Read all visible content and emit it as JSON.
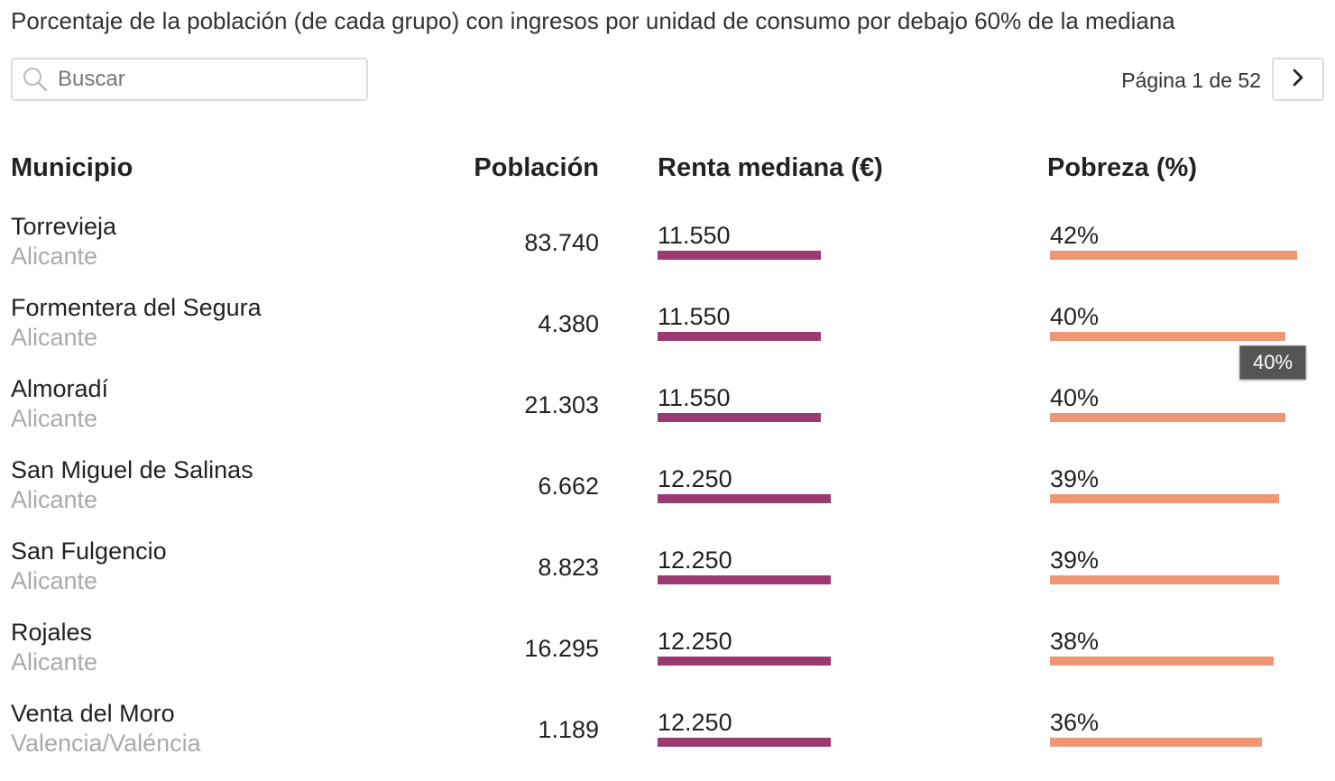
{
  "subtitle": "Porcentaje de la población (de cada grupo) con ingresos por unidad de consumo por debajo 60% de la mediana",
  "search": {
    "placeholder": "Buscar",
    "value": ""
  },
  "pagination": {
    "label": "Página 1 de 52",
    "current_page": 1,
    "total_pages": 52
  },
  "columns": {
    "municipio": "Municipio",
    "poblacion": "Población",
    "renta": "Renta mediana (€)",
    "pobreza": "Pobreza (%)"
  },
  "rows": [
    {
      "municipio": "Torrevieja",
      "provincia": "Alicante",
      "poblacion": "83.740",
      "renta": "11.550",
      "renta_value": 11550,
      "pobreza": "42%",
      "pobreza_value": 42
    },
    {
      "municipio": "Formentera del Segura",
      "provincia": "Alicante",
      "poblacion": "4.380",
      "renta": "11.550",
      "renta_value": 11550,
      "pobreza": "40%",
      "pobreza_value": 40
    },
    {
      "municipio": "Almoradí",
      "provincia": "Alicante",
      "poblacion": "21.303",
      "renta": "11.550",
      "renta_value": 11550,
      "pobreza": "40%",
      "pobreza_value": 40
    },
    {
      "municipio": "San Miguel de Salinas",
      "provincia": "Alicante",
      "poblacion": "6.662",
      "renta": "12.250",
      "renta_value": 12250,
      "pobreza": "39%",
      "pobreza_value": 39
    },
    {
      "municipio": "San Fulgencio",
      "provincia": "Alicante",
      "poblacion": "8.823",
      "renta": "12.250",
      "renta_value": 12250,
      "pobreza": "39%",
      "pobreza_value": 39
    },
    {
      "municipio": "Rojales",
      "provincia": "Alicante",
      "poblacion": "16.295",
      "renta": "12.250",
      "renta_value": 12250,
      "pobreza": "38%",
      "pobreza_value": 38
    },
    {
      "municipio": "Venta del Moro",
      "provincia": "Valencia/Valéncia",
      "poblacion": "1.189",
      "renta": "12.250",
      "renta_value": 12250,
      "pobreza": "36%",
      "pobreza_value": 36
    }
  ],
  "tooltip": {
    "text": "40%"
  },
  "colors": {
    "renta_bar": "#9b3a70",
    "pobreza_bar": "#ed9774",
    "province_text": "#aaaaaa"
  },
  "icons": {
    "search": "search-icon",
    "next": "chevron-right-icon"
  }
}
